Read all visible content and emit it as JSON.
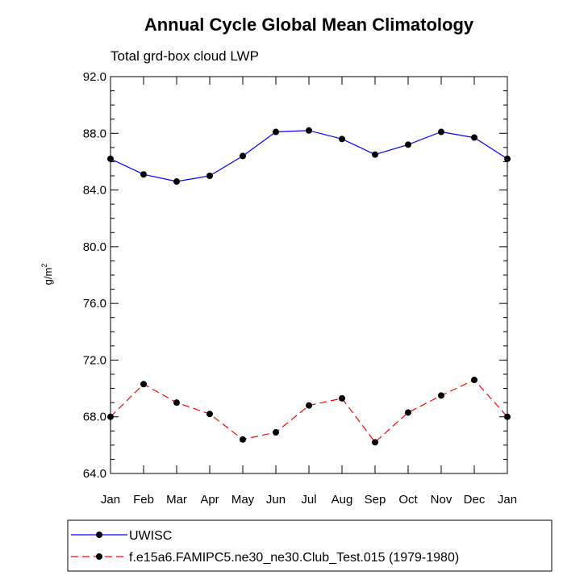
{
  "chart_data": {
    "type": "line",
    "title": "Annual Cycle Global Mean Climatology",
    "subtitle": "Total grd-box cloud LWP",
    "ylabel": "g/m",
    "ylabel_sup": "2",
    "ylim": [
      64.0,
      92.0
    ],
    "y_ticks": [
      "64.0",
      "68.0",
      "72.0",
      "76.0",
      "80.0",
      "84.0",
      "88.0",
      "92.0"
    ],
    "categories": [
      "Jan",
      "Feb",
      "Mar",
      "Apr",
      "May",
      "Jun",
      "Jul",
      "Aug",
      "Sep",
      "Oct",
      "Nov",
      "Dec",
      "Jan"
    ],
    "legend_position": "bottom",
    "series": [
      {
        "name": "UWISC",
        "color": "#0000ff",
        "dash": "solid",
        "values": [
          86.2,
          85.1,
          84.6,
          85.0,
          86.4,
          88.1,
          88.2,
          87.6,
          86.5,
          87.2,
          88.1,
          87.7,
          86.2
        ]
      },
      {
        "name": "f.e15a6.FAMIPC5.ne30_ne30.Club_Test.015 (1979-1980)",
        "color": "#ff0000",
        "dash": "dashed",
        "values": [
          68.0,
          70.3,
          69.0,
          68.2,
          66.4,
          66.9,
          68.8,
          69.3,
          66.2,
          68.3,
          69.5,
          70.6,
          68.0
        ]
      }
    ]
  }
}
